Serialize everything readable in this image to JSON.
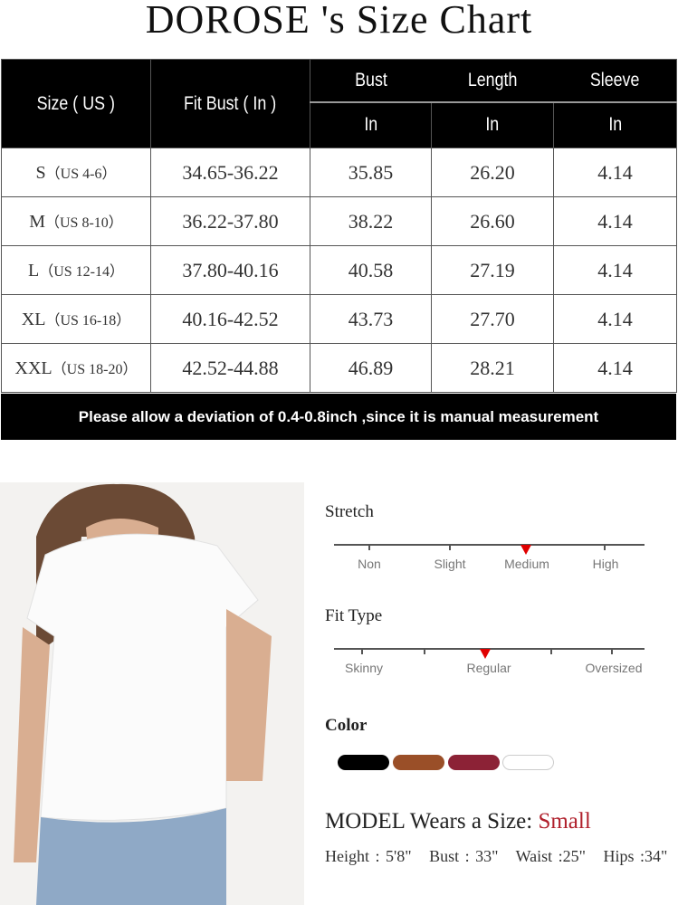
{
  "title": "DOROSE 's  Size Chart",
  "table": {
    "headers": {
      "size": "Size ( US )",
      "fit_bust": "Fit Bust ( In )",
      "bust": "Bust",
      "length": "Length",
      "sleeve": "Sleeve",
      "unit": "In"
    },
    "rows": [
      {
        "size": "S",
        "us": "（US 4-6）",
        "fit_bust": "34.65-36.22",
        "bust": "35.85",
        "length": "26.20",
        "sleeve": "4.14"
      },
      {
        "size": "M",
        "us": "（US 8-10）",
        "fit_bust": "36.22-37.80",
        "bust": "38.22",
        "length": "26.60",
        "sleeve": "4.14"
      },
      {
        "size": "L",
        "us": "（US 12-14）",
        "fit_bust": "37.80-40.16",
        "bust": "40.58",
        "length": "27.19",
        "sleeve": "4.14"
      },
      {
        "size": "XL",
        "us": "（US 16-18）",
        "fit_bust": "40.16-42.52",
        "bust": "43.73",
        "length": "27.70",
        "sleeve": "4.14"
      },
      {
        "size": "XXL",
        "us": "（US 18-20）",
        "fit_bust": "42.52-44.88",
        "bust": "46.89",
        "length": "28.21",
        "sleeve": "4.14"
      }
    ],
    "note": "Please allow a deviation of 0.4-0.8inch ,since it is manual measurement"
  },
  "stretch": {
    "label": "Stretch",
    "options": [
      "Non",
      "Slight",
      "Medium",
      "High"
    ],
    "selected": "Medium"
  },
  "fit_type": {
    "label": "Fit Type",
    "options": [
      "Skinny",
      "Regular",
      "Oversized"
    ],
    "selected": "Regular"
  },
  "color": {
    "label": "Color",
    "swatches": [
      "#000000",
      "#9a4f28",
      "#8c2236",
      "#ffffff"
    ]
  },
  "model": {
    "prefix": "MODEL Wears a Size: ",
    "size": "Small",
    "measurements": "Height : 5'8\"   Bust : 33\"   Waist :25\"   Hips :34\""
  },
  "colors": {
    "marker": "#e00000",
    "accent": "#b0202c"
  }
}
